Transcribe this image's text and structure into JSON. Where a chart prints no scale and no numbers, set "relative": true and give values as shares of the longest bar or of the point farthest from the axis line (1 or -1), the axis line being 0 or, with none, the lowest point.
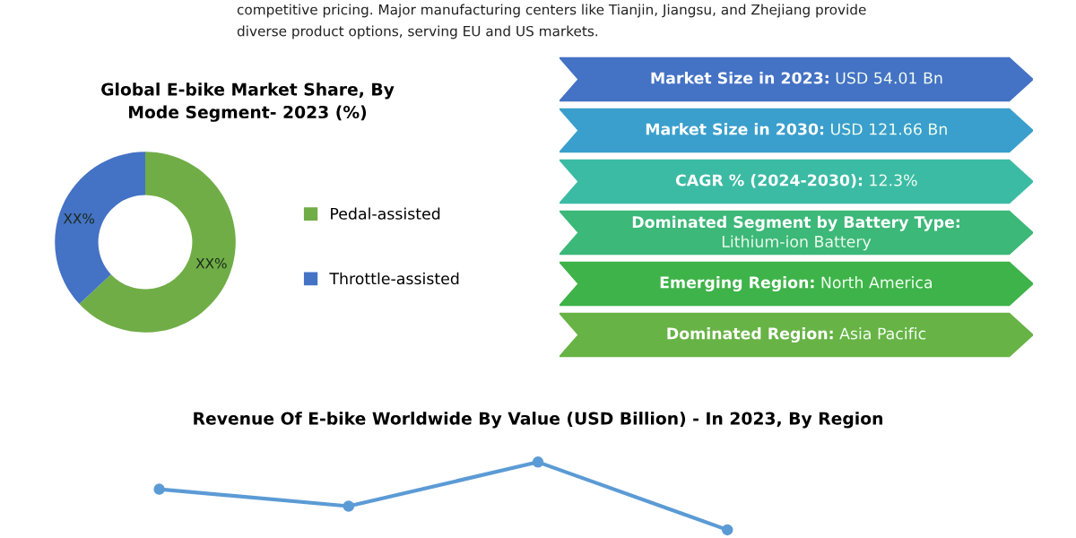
{
  "chart_data": [
    {
      "type": "other",
      "annotations": [
        "competitive pricing. Major manufacturing centers like Tianjin, Jiangsu, and Zhejiang provide",
        "diverse product options, serving EU and US markets."
      ]
    },
    {
      "type": "donut",
      "title": "Global E-bike Market Share, By\nMode Segment- 2023 (%)",
      "categories": [
        "Pedal-assisted",
        "Throttle-assisted"
      ],
      "values": [
        63,
        37
      ],
      "colors": [
        "#70ad47",
        "#4472c4"
      ],
      "value_labels": [
        "XX%",
        "XX%"
      ],
      "legend": "right"
    },
    {
      "type": "other",
      "annotations": [
        "Market Size in 2023: USD 54.01 Bn",
        "Market Size in 2030: USD 121.66 Bn",
        "CAGR % (2024-2030): 12.3%",
        "Dominated Segment by Battery Type:\nLithium-ion Battery",
        "Emerging Region: North America",
        "Dominated Region: Asia Pacific"
      ],
      "colors": [
        "#4472c4",
        "#3a9fcc",
        "#3cbba4",
        "#3cb878",
        "#3eb349",
        "#67b346"
      ]
    },
    {
      "type": "line",
      "title": "Revenue Of E-bike Worldwide By Value (USD Billion) - In 2023, By Region",
      "categories": [
        null,
        null,
        null,
        null,
        null
      ],
      "relative": true,
      "series": [
        {
          "color": "#5b9bd5",
          "values": [
            0.6,
            0.35,
            1,
            0,
            null
          ]
        }
      ],
      "marker": "circle",
      "line_style": "solid"
    }
  ]
}
